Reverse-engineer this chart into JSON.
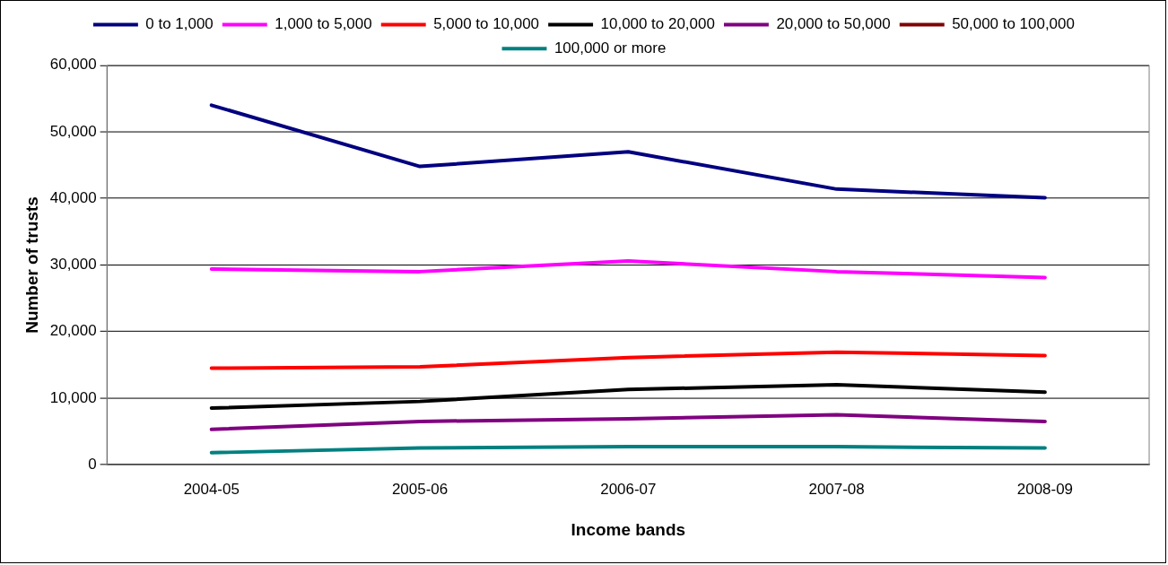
{
  "chart_data": {
    "type": "line",
    "xlabel": "Income bands",
    "ylabel": "Number of trusts",
    "categories": [
      "2004-05",
      "2005-06",
      "2006-07",
      "2007-08",
      "2008-09"
    ],
    "series": [
      {
        "name": "0 to 1,000",
        "color": "#000080",
        "values": [
          54000,
          44800,
          47000,
          41400,
          40100
        ]
      },
      {
        "name": "1,000 to 5,000",
        "color": "#ff00ff",
        "values": [
          29400,
          29000,
          30600,
          29000,
          28100
        ]
      },
      {
        "name": "5,000 to 10,000",
        "color": "#ff0000",
        "values": [
          14500,
          14700,
          16100,
          16900,
          16400
        ]
      },
      {
        "name": "10,000 to 20,000",
        "color": "#000000",
        "values": [
          8500,
          9500,
          11300,
          12000,
          10900
        ]
      },
      {
        "name": "20,000 to 50,000",
        "color": "#800080",
        "values": [
          5300,
          6500,
          6900,
          7500,
          6500
        ]
      },
      {
        "name": "50,000 to 100,000",
        "color": "#800000",
        "values": [
          null,
          null,
          null,
          null,
          null
        ]
      },
      {
        "name": "100,000 or more",
        "color": "#008080",
        "values": [
          1800,
          2500,
          2700,
          2700,
          2500
        ]
      }
    ],
    "ylim": [
      0,
      60000
    ],
    "yticks": [
      {
        "value": 0,
        "label": "0"
      },
      {
        "value": 10000,
        "label": "10,000"
      },
      {
        "value": 20000,
        "label": "20,000"
      },
      {
        "value": 30000,
        "label": "30,000"
      },
      {
        "value": 40000,
        "label": "40,000"
      },
      {
        "value": 50000,
        "label": "50,000"
      },
      {
        "value": 60000,
        "label": "60,000"
      }
    ],
    "grid": "y",
    "legend": "top",
    "marker": "none",
    "line_style": "solid"
  }
}
